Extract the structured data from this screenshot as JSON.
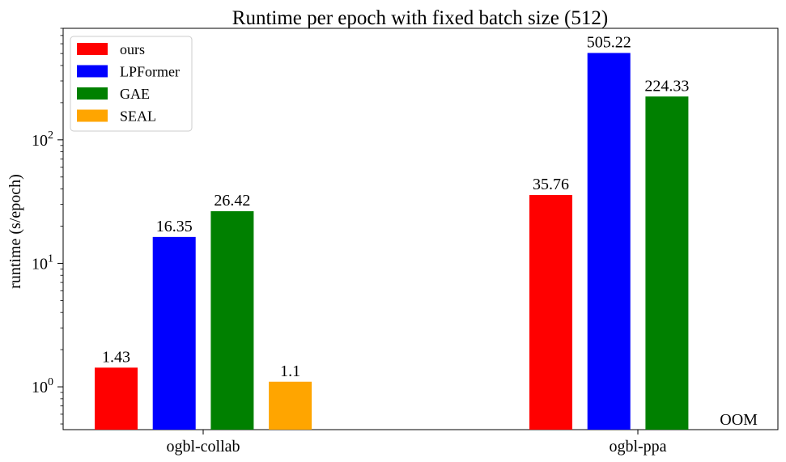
{
  "chart_data": {
    "type": "bar",
    "title": "Runtime per epoch with fixed batch size (512)",
    "xlabel": "",
    "ylabel": "runtime (s/epoch)",
    "yscale": "log",
    "ylim": [
      0.45,
      800
    ],
    "categories": [
      "ogbl-collab",
      "ogbl-ppa"
    ],
    "series": [
      {
        "name": "ours",
        "color": "#ff0000",
        "values": [
          1.43,
          35.76
        ],
        "labels": [
          "1.43",
          "35.76"
        ]
      },
      {
        "name": "LPFormer",
        "color": "#0000ff",
        "values": [
          16.35,
          505.22
        ],
        "labels": [
          "16.35",
          "505.22"
        ]
      },
      {
        "name": "GAE",
        "color": "#008000",
        "values": [
          26.42,
          224.33
        ],
        "labels": [
          "26.42",
          "224.33"
        ]
      },
      {
        "name": "SEAL",
        "color": "#ffa500",
        "values": [
          1.1,
          null
        ],
        "labels": [
          "1.1",
          "OOM"
        ]
      }
    ],
    "yticks": [
      {
        "value": 1,
        "base": "10",
        "exp": "0"
      },
      {
        "value": 10,
        "base": "10",
        "exp": "1"
      },
      {
        "value": 100,
        "base": "10",
        "exp": "2"
      }
    ],
    "grid": false,
    "legend_position": "top-left"
  }
}
